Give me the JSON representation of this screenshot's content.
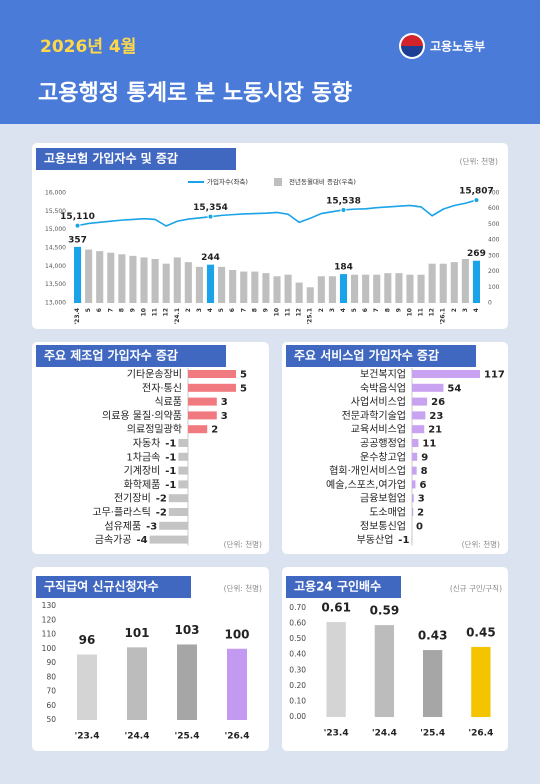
{
  "header": {
    "date": "2026년 4월",
    "title": "고용행정 통계로 본 노동시장 동향",
    "logo": "고용노동부"
  },
  "chart_data": [
    {
      "type": "combo",
      "title": "고용보험 가입자수 및 증감",
      "unit": "(단위: 천명)",
      "categories": [
        "'23.4",
        "5",
        "6",
        "7",
        "8",
        "9",
        "10",
        "11",
        "12",
        "'24.1",
        "2",
        "3",
        "4",
        "5",
        "6",
        "7",
        "8",
        "9",
        "10",
        "11",
        "12",
        "'25.1",
        "2",
        "3",
        "4",
        "5",
        "6",
        "7",
        "8",
        "9",
        "10",
        "11",
        "12",
        "'26.1",
        "2",
        "3",
        "4"
      ],
      "series": [
        {
          "name": "가입자수(좌축)",
          "type": "line",
          "axis": "y",
          "color": "#1aa3e8",
          "values": [
            15110,
            15170,
            15200,
            15230,
            15260,
            15280,
            15300,
            15280,
            15100,
            15230,
            15290,
            15320,
            15354,
            15390,
            15410,
            15430,
            15440,
            15450,
            15470,
            15420,
            15200,
            15310,
            15440,
            15490,
            15538,
            15560,
            15570,
            15600,
            15620,
            15640,
            15660,
            15620,
            15380,
            15560,
            15660,
            15720,
            15807
          ],
          "value_labels": [
            "15,110",
            null,
            null,
            null,
            null,
            null,
            null,
            null,
            null,
            null,
            null,
            null,
            "15,354",
            null,
            null,
            null,
            null,
            null,
            null,
            null,
            null,
            null,
            null,
            null,
            "15,538",
            null,
            null,
            null,
            null,
            null,
            null,
            null,
            null,
            null,
            null,
            null,
            "15,807"
          ]
        },
        {
          "name": "전년동월대비 증감(우축)",
          "type": "bar",
          "axis": "y2",
          "color": "#bfbfbf",
          "colors": [
            "#1aa3e8",
            "#bfbfbf",
            "#bfbfbf",
            "#bfbfbf",
            "#bfbfbf",
            "#bfbfbf",
            "#bfbfbf",
            "#bfbfbf",
            "#bfbfbf",
            "#bfbfbf",
            "#bfbfbf",
            "#bfbfbf",
            "#1aa3e8",
            "#bfbfbf",
            "#bfbfbf",
            "#bfbfbf",
            "#bfbfbf",
            "#bfbfbf",
            "#bfbfbf",
            "#bfbfbf",
            "#bfbfbf",
            "#bfbfbf",
            "#bfbfbf",
            "#bfbfbf",
            "#1aa3e8",
            "#bfbfbf",
            "#bfbfbf",
            "#bfbfbf",
            "#bfbfbf",
            "#bfbfbf",
            "#bfbfbf",
            "#bfbfbf",
            "#bfbfbf",
            "#bfbfbf",
            "#bfbfbf",
            "#bfbfbf",
            "#1aa3e8"
          ],
          "values": [
            357,
            340,
            330,
            320,
            310,
            300,
            290,
            280,
            250,
            290,
            260,
            230,
            244,
            230,
            210,
            200,
            200,
            190,
            170,
            180,
            130,
            100,
            170,
            170,
            184,
            180,
            180,
            180,
            190,
            190,
            180,
            180,
            250,
            250,
            260,
            280,
            269
          ],
          "value_labels": [
            "357",
            null,
            null,
            null,
            null,
            null,
            null,
            null,
            null,
            null,
            null,
            null,
            "244",
            null,
            null,
            null,
            null,
            null,
            null,
            null,
            null,
            null,
            null,
            null,
            "184",
            null,
            null,
            null,
            null,
            null,
            null,
            null,
            null,
            null,
            null,
            null,
            "269"
          ]
        }
      ],
      "ylim": [
        13000,
        16000
      ],
      "yticks": [
        {
          "value": 13000,
          "label": "13,000"
        },
        {
          "value": 13500,
          "label": "13,500"
        },
        {
          "value": 14000,
          "label": "14,000"
        },
        {
          "value": 14500,
          "label": "14,500"
        },
        {
          "value": 15000,
          "label": "15,000"
        },
        {
          "value": 15500,
          "label": "15,500"
        },
        {
          "value": 16000,
          "label": "16,000"
        }
      ],
      "y2lim": [
        0,
        700
      ],
      "y2ticks": [
        0,
        100,
        200,
        300,
        400,
        500,
        600,
        700
      ]
    },
    {
      "type": "hbar",
      "title": "주요 제조업 가입자수 증감",
      "unit": "(단위: 천명)",
      "categories": [
        "기타운송장비",
        "전자·통신",
        "식료품",
        "의료용 물질·의약품",
        "의료정밀광학",
        "자동차",
        "1차금속",
        "기계장비",
        "화학제품",
        "전기장비",
        "고무·플라스틱",
        "섬유제품",
        "금속가공"
      ],
      "values": [
        5,
        5,
        3,
        3,
        2,
        -1,
        -1,
        -1,
        -1,
        -2,
        -2,
        -3,
        -4
      ],
      "color": "#f07a80",
      "negative_color": "#c4c4c4"
    },
    {
      "type": "hbar",
      "title": "주요 서비스업 가입자수 증감",
      "unit": "(단위: 천명)",
      "categories": [
        "보건복지업",
        "숙박음식업",
        "사업서비스업",
        "전문과학기술업",
        "교육서비스업",
        "공공행정업",
        "운수창고업",
        "협회·개인서비스업",
        "예술,스포츠,여가업",
        "금융보험업",
        "도소매업",
        "정보통신업",
        "부동산업"
      ],
      "values": [
        117,
        54,
        26,
        23,
        21,
        11,
        9,
        8,
        6,
        3,
        2,
        0,
        -1
      ],
      "color": "#c9a2f2",
      "negative_color": "#c4c4c4"
    },
    {
      "type": "bar",
      "title": "구직급여 신규신청자수",
      "unit": "(단위: 천명)",
      "categories": [
        "'23.4",
        "'24.4",
        "'25.4",
        "'26.4"
      ],
      "values": [
        96,
        101,
        103,
        100
      ],
      "colors": [
        "#d4d4d4",
        "#bcbcbc",
        "#a6a6a6",
        "#c39af2"
      ],
      "ylim": [
        50,
        130
      ],
      "yticks": [
        50,
        60,
        70,
        80,
        90,
        100,
        110,
        120,
        130
      ]
    },
    {
      "type": "bar",
      "title": "고용24 구인배수",
      "unit": "(신규 구인/구직)",
      "categories": [
        "'23.4",
        "'24.4",
        "'25.4",
        "'26.4"
      ],
      "values": [
        0.61,
        0.59,
        0.43,
        0.45
      ],
      "colors": [
        "#d4d4d4",
        "#bcbcbc",
        "#a6a6a6",
        "#f5c400"
      ],
      "ylim": [
        0,
        0.7
      ],
      "yticks": [
        {
          "value": 0,
          "label": "0.00"
        },
        {
          "value": 0.1,
          "label": "0.10"
        },
        {
          "value": 0.2,
          "label": "0.20"
        },
        {
          "value": 0.3,
          "label": "0.30"
        },
        {
          "value": 0.4,
          "label": "0.40"
        },
        {
          "value": 0.5,
          "label": "0.50"
        },
        {
          "value": 0.6,
          "label": "0.60"
        },
        {
          "value": 0.7,
          "label": "0.70"
        }
      ]
    }
  ]
}
